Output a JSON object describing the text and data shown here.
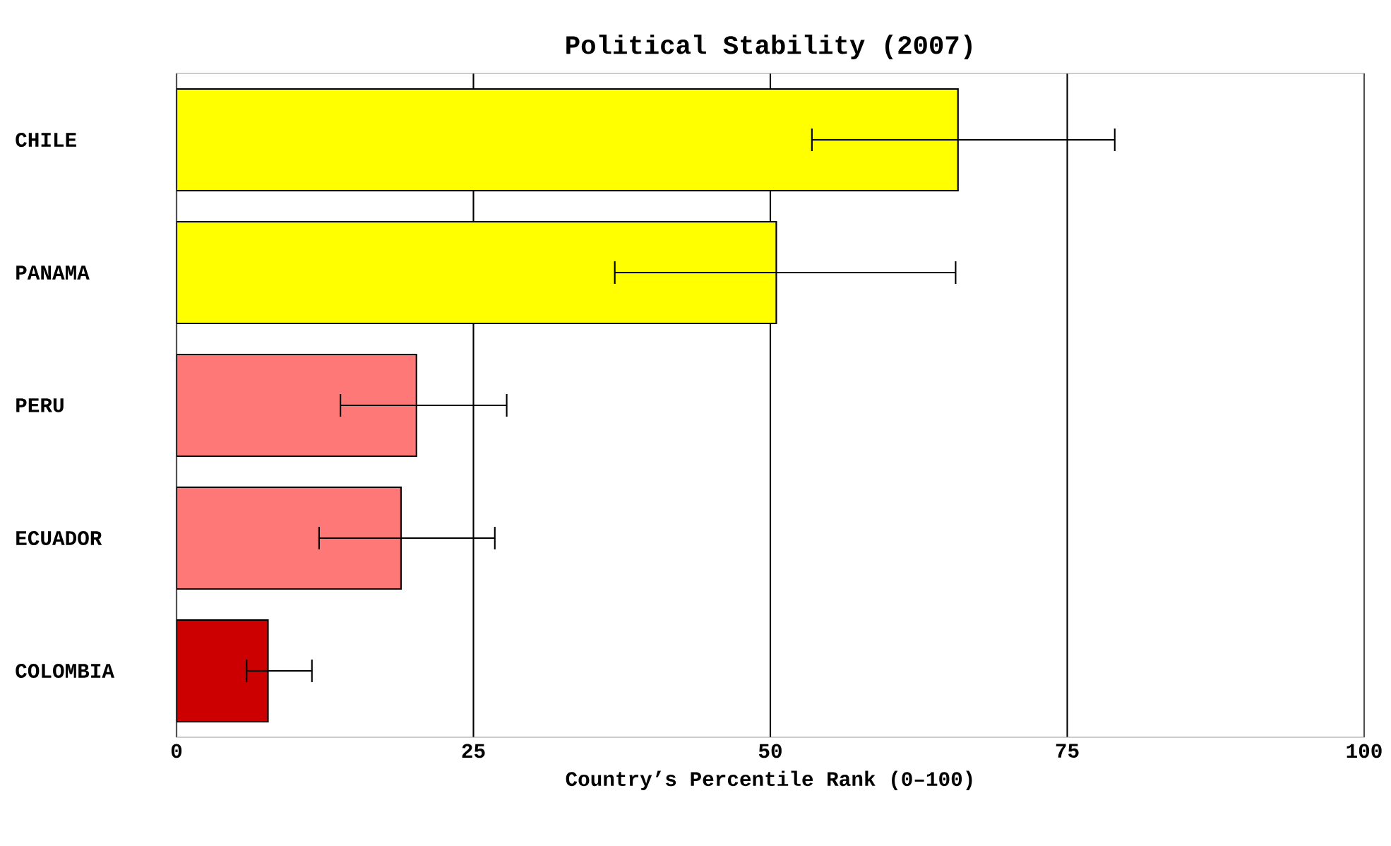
{
  "chart_data": {
    "type": "bar",
    "orientation": "horizontal",
    "title": "Political Stability (2007)",
    "xlabel": "Country’s Percentile Rank (0–100)",
    "categories": [
      "CHILE",
      "PANAMA",
      "PERU",
      "ECUADOR",
      "COLOMBIA"
    ],
    "values": [
      65.8,
      50.5,
      20.2,
      18.9,
      7.7
    ],
    "colors": [
      "#ffff00",
      "#ffff00",
      "#ff7878",
      "#ff7878",
      "#cc0000"
    ],
    "errors": [
      [
        53.5,
        79.0
      ],
      [
        36.9,
        65.6
      ],
      [
        13.8,
        27.8
      ],
      [
        12.0,
        26.8
      ],
      [
        5.9,
        11.4
      ]
    ],
    "xlim": [
      0,
      100
    ],
    "xticks": [
      0,
      25,
      50,
      75,
      100
    ],
    "grid": "x"
  }
}
